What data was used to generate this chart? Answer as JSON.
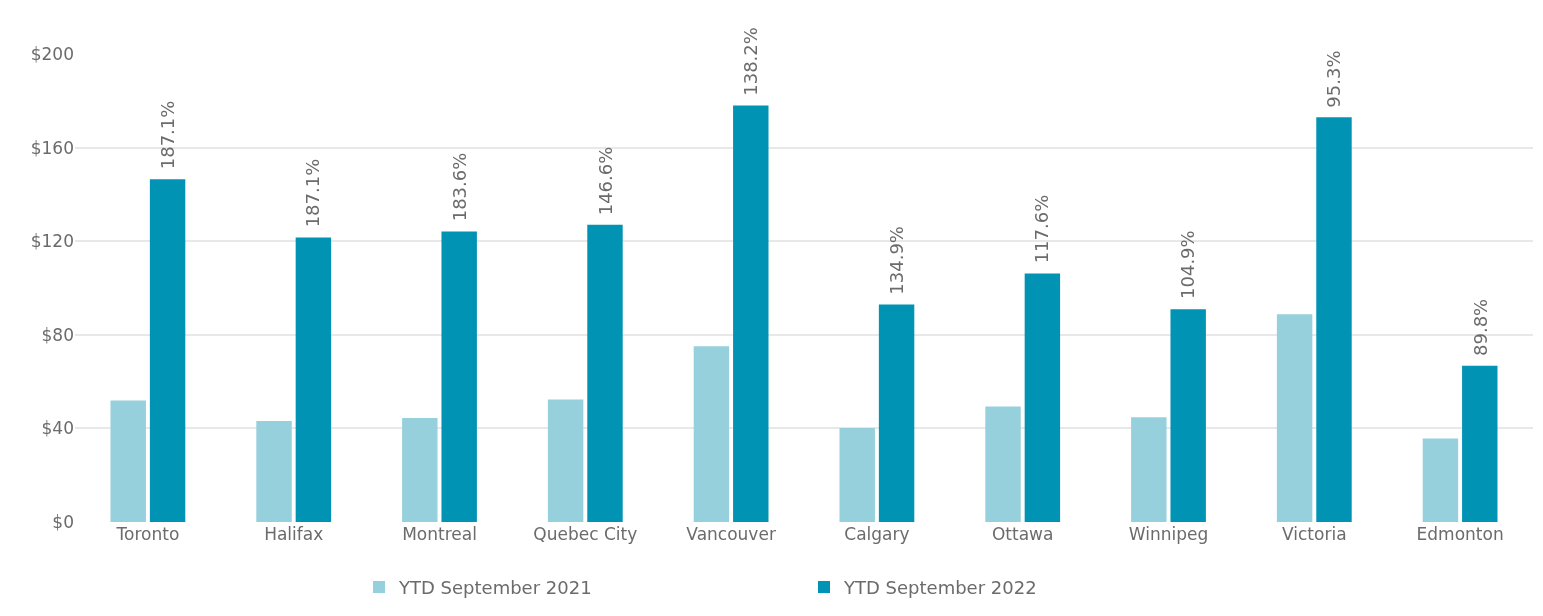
{
  "chart_data": {
    "type": "bar",
    "categories": [
      "Toronto",
      "Halifax",
      "Montreal",
      "Quebec City",
      "Vancouver",
      "Calgary",
      "Ottawa",
      "Winnipeg",
      "Victoria",
      "Edmonton"
    ],
    "series": [
      {
        "name": "YTD September 2021",
        "color": "#96d0dc",
        "values": [
          51.9,
          43.2,
          44.4,
          52.3,
          75.1,
          40.2,
          49.4,
          44.8,
          88.8,
          35.7
        ]
      },
      {
        "name": "YTD September 2022",
        "color": "#0093b4",
        "values": [
          146.5,
          121.6,
          124.1,
          127.0,
          178.0,
          92.9,
          106.2,
          90.9,
          173.0,
          66.8
        ]
      }
    ],
    "annotations": [
      {
        "text": "187.1%",
        "x": "Toronto",
        "y": 146.5
      },
      {
        "text": "187.1%",
        "x": "Halifax",
        "y": 121.6
      },
      {
        "text": "183.6%",
        "x": "Montreal",
        "y": 124.1
      },
      {
        "text": "146.6%",
        "x": "Quebec City",
        "y": 127.0
      },
      {
        "text": "138.2%",
        "x": "Vancouver",
        "y": 178.0
      },
      {
        "text": "134.9%",
        "x": "Calgary",
        "y": 92.9
      },
      {
        "text": "117.6%",
        "x": "Ottawa",
        "y": 106.2
      },
      {
        "text": "104.9%",
        "x": "Winnipeg",
        "y": 90.9
      },
      {
        "text": "95.3%",
        "x": "Victoria",
        "y": 173.0
      },
      {
        "text": "89.8%",
        "x": "Edmonton",
        "y": 66.8
      }
    ],
    "ylim": [
      0,
      200
    ],
    "yticks": [
      {
        "value": 0,
        "label": "$0"
      },
      {
        "value": 40,
        "label": "$40"
      },
      {
        "value": 80,
        "label": "$80"
      },
      {
        "value": 120,
        "label": "$120"
      },
      {
        "value": 160,
        "label": "$160"
      },
      {
        "value": 200,
        "label": "$200"
      }
    ],
    "grid": "y",
    "legend": "bottom"
  }
}
